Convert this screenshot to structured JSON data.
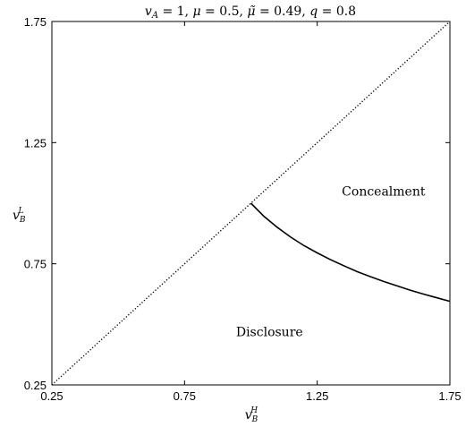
{
  "chart_data": {
    "type": "line",
    "title": "v_A = 1, μ = 0.5, μ̃ = 0.49, q = 0.8",
    "title_parts": {
      "vA": "v",
      "vA_sub": "A",
      "vA_val": " = 1, ",
      "mu": "μ",
      "mu_val": " = 0.5, ",
      "mut": "μ̃",
      "mut_val": " = 0.49, ",
      "q": "q",
      "q_val": " = 0.8"
    },
    "xlabel": {
      "base": "v",
      "sub": "B",
      "sup": "H"
    },
    "ylabel": {
      "base": "v",
      "sub": "B",
      "sup": "L"
    },
    "xlim": [
      0.25,
      1.75
    ],
    "ylim": [
      0.25,
      1.75
    ],
    "xticks": [
      0.25,
      0.75,
      1.25,
      1.75
    ],
    "yticks": [
      0.25,
      0.75,
      1.25,
      1.75
    ],
    "xtick_labels": [
      "0.25",
      "0.75",
      "1.25",
      "1.75"
    ],
    "ytick_labels": [
      "0.25",
      "0.75",
      "1.25",
      "1.75"
    ],
    "grid": false,
    "series": [
      {
        "style": "dotted",
        "x": [
          0.25,
          1.75
        ],
        "y": [
          0.25,
          1.75
        ]
      },
      {
        "style": "solid",
        "x": [
          1.0,
          1.05,
          1.1,
          1.15,
          1.2,
          1.25,
          1.3,
          1.35,
          1.4,
          1.45,
          1.5,
          1.55,
          1.6,
          1.65,
          1.7,
          1.75
        ],
        "y": [
          1.0,
          0.945,
          0.9,
          0.86,
          0.825,
          0.795,
          0.767,
          0.742,
          0.718,
          0.697,
          0.677,
          0.659,
          0.641,
          0.625,
          0.61,
          0.595
        ]
      }
    ],
    "annotations": [
      {
        "text": "Concealment",
        "x": 1.5,
        "y": 1.05
      },
      {
        "text": "Disclosure",
        "x": 1.07,
        "y": 0.47
      }
    ]
  }
}
